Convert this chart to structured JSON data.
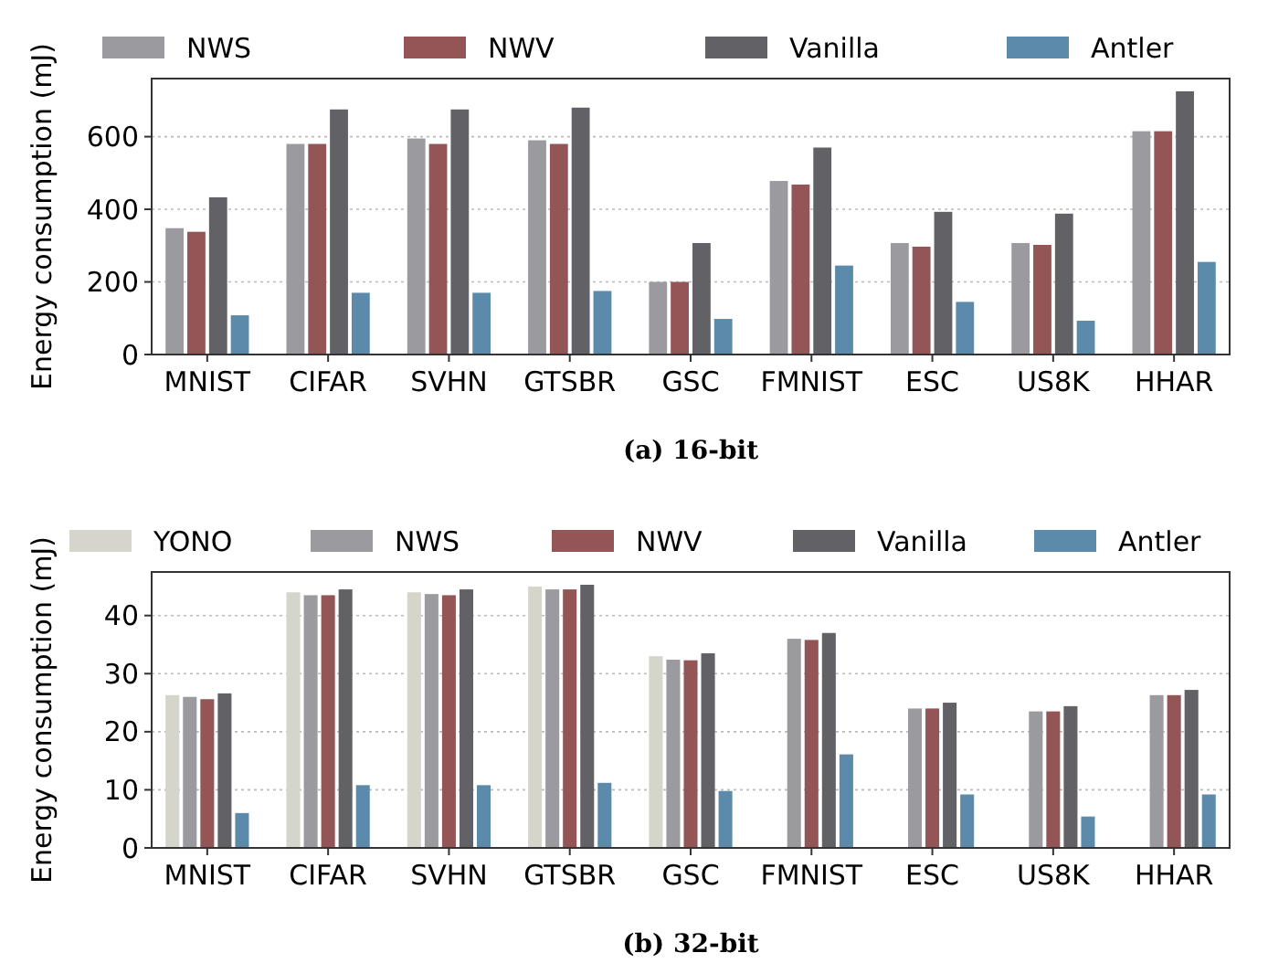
{
  "chart_data": [
    {
      "type": "bar",
      "title": "(a) 16-bit",
      "ylabel": "Energy consumption (mJ)",
      "categories": [
        "MNIST",
        "CIFAR",
        "SVHN",
        "GTSBR",
        "GSC",
        "FMNIST",
        "ESC",
        "US8K",
        "HHAR"
      ],
      "series": [
        {
          "name": "NWS",
          "color": "#9b9b9f",
          "values": [
            348,
            580,
            595,
            590,
            200,
            478,
            307,
            307,
            615
          ]
        },
        {
          "name": "NWV",
          "color": "#945557",
          "values": [
            338,
            580,
            580,
            580,
            200,
            468,
            297,
            302,
            615
          ]
        },
        {
          "name": "Vanilla",
          "color": "#616166",
          "values": [
            433,
            675,
            675,
            680,
            307,
            570,
            393,
            388,
            725
          ]
        },
        {
          "name": "Antler",
          "color": "#5b8aab",
          "values": [
            108,
            170,
            170,
            175,
            98,
            245,
            145,
            93,
            255
          ]
        }
      ],
      "ylim": [
        0,
        760
      ],
      "yticks": [
        0,
        200,
        400,
        600
      ],
      "grid": "y",
      "legend": "top"
    },
    {
      "type": "bar",
      "title": "(b) 32-bit",
      "ylabel": "Energy consumption (mJ)",
      "categories": [
        "MNIST",
        "CIFAR",
        "SVHN",
        "GTSBR",
        "GSC",
        "FMNIST",
        "ESC",
        "US8K",
        "HHAR"
      ],
      "series": [
        {
          "name": "YONO",
          "color": "#d5d5cc",
          "values": [
            26.3,
            44,
            44,
            45,
            33,
            null,
            null,
            null,
            null
          ]
        },
        {
          "name": "NWS",
          "color": "#9b9b9f",
          "values": [
            26,
            43.5,
            43.7,
            44.5,
            32.4,
            36,
            24,
            23.5,
            26.3
          ]
        },
        {
          "name": "NWV",
          "color": "#945557",
          "values": [
            25.6,
            43.5,
            43.5,
            44.5,
            32.3,
            35.8,
            24,
            23.5,
            26.3
          ]
        },
        {
          "name": "Vanilla",
          "color": "#616166",
          "values": [
            26.6,
            44.5,
            44.5,
            45.3,
            33.5,
            37,
            25,
            24.4,
            27.2
          ]
        },
        {
          "name": "Antler",
          "color": "#5b8aab",
          "values": [
            6,
            10.8,
            10.8,
            11.2,
            9.8,
            16.1,
            9.2,
            5.4,
            9.2
          ]
        }
      ],
      "ylim": [
        0,
        47.5
      ],
      "yticks": [
        0,
        10,
        20,
        30,
        40
      ],
      "grid": "y",
      "legend": "top"
    }
  ]
}
